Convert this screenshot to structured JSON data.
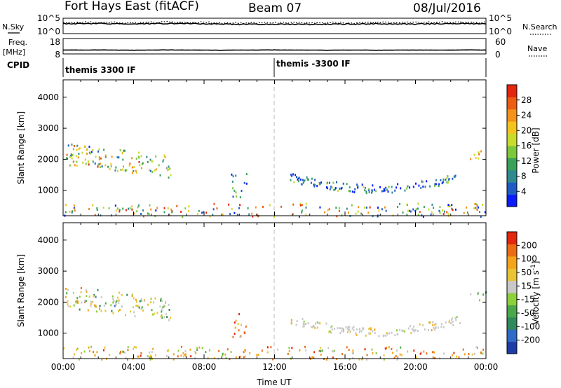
{
  "header": {
    "station": "Fort Hays East (fitACF)",
    "beam": "Beam 07",
    "date": "08/Jul/2016"
  },
  "side_labels": {
    "nsky": "N.Sky",
    "freq": "Freq.",
    "freq_unit": "[MHz]",
    "cpid": "CPID",
    "nsearch": "N.Search",
    "nave": "Nave"
  },
  "cpid_segments": [
    {
      "label": "themis 3300 IF",
      "start_hour": 0
    },
    {
      "label": "themis -3300 IF",
      "start_hour": 12
    }
  ],
  "chart_data": [
    {
      "type": "line",
      "title": "",
      "left_ticks": [
        "10^5",
        "10^0"
      ],
      "right_ticks": [
        "10^5",
        "10^0"
      ],
      "left_label": "N.Sky",
      "right_label": "N.Search",
      "series": [
        {
          "style": "solid",
          "x": [
            0,
            2,
            4,
            6,
            8,
            10,
            12,
            14,
            16,
            18,
            20,
            22,
            24
          ],
          "values": [
            3.2,
            3.3,
            3.1,
            3.3,
            3.2,
            3.0,
            3.1,
            3.0,
            3.1,
            3.2,
            3.1,
            3.3,
            3.2
          ]
        },
        {
          "style": "dotted",
          "x": [
            0,
            2,
            4,
            6,
            8,
            10,
            12,
            14,
            16,
            18,
            20,
            22,
            24
          ],
          "values": [
            3.6,
            3.7,
            3.5,
            3.8,
            3.6,
            3.4,
            3.6,
            3.5,
            3.5,
            3.6,
            3.6,
            3.7,
            3.6
          ]
        }
      ],
      "xlim": [
        0,
        24
      ]
    },
    {
      "type": "line",
      "title": "",
      "left_ticks": [
        "18",
        "8"
      ],
      "right_ticks": [
        "60",
        "0"
      ],
      "left_label": "Freq. [MHz]",
      "right_label": "Nave",
      "series": [
        {
          "style": "solid",
          "x": [
            0,
            1,
            2,
            3,
            4,
            5,
            6,
            7,
            8,
            9,
            10,
            11,
            12,
            13,
            14,
            15,
            16,
            17,
            18,
            19,
            20,
            21,
            22,
            23,
            24
          ],
          "values": [
            10.6,
            10.5,
            10.6,
            10.5,
            10.4,
            10.5,
            10.6,
            10.5,
            10.5,
            10.4,
            10.5,
            10.5,
            10.6,
            10.5,
            10.5,
            10.4,
            10.5,
            10.5,
            10.4,
            10.5,
            10.5,
            10.5,
            10.5,
            10.6,
            10.5
          ]
        }
      ],
      "xlim": [
        0,
        24
      ]
    },
    {
      "type": "scatter",
      "title": "",
      "ylabel": "Slant Range [km]",
      "ylim": [
        180,
        4560
      ],
      "yticks": [
        1000,
        2000,
        3000,
        4000
      ],
      "xlim": [
        0,
        24
      ],
      "colorbar": {
        "label": "Power [dB]",
        "ticks": [
          "4",
          "8",
          "12",
          "16",
          "20",
          "24",
          "28"
        ],
        "colors": [
          "#0a1cff",
          "#1e5cc4",
          "#2e8a8e",
          "#3aa05a",
          "#7cc83a",
          "#c8dc2a",
          "#f4c41e",
          "#f4921a",
          "#ec5c12",
          "#e4260e"
        ]
      },
      "regions": [
        {
          "t0": 0.1,
          "t1": 6.1,
          "r0": 1500,
          "r1": 2650,
          "weights": [
            1,
            2,
            3,
            4,
            5,
            6,
            5,
            4,
            2,
            1
          ]
        },
        {
          "t0": 0.0,
          "t1": 24.0,
          "r0": 180,
          "r1": 600,
          "weights": [
            3,
            3,
            4,
            4,
            5,
            5,
            5,
            4,
            3,
            3
          ]
        },
        {
          "t0": 12.8,
          "t1": 22.5,
          "r0": 900,
          "r1": 1650,
          "weights": [
            6,
            6,
            5,
            3,
            2,
            1,
            0,
            0,
            0,
            0
          ]
        },
        {
          "t0": 9.5,
          "t1": 10.4,
          "r0": 800,
          "r1": 1650,
          "weights": [
            6,
            6,
            5,
            3,
            2,
            1,
            0,
            0,
            0,
            0
          ]
        },
        {
          "t0": 23.0,
          "t1": 24.0,
          "r0": 2000,
          "r1": 2400,
          "weights": [
            0,
            0,
            0,
            0,
            2,
            4,
            6,
            5,
            3,
            1
          ]
        }
      ]
    },
    {
      "type": "scatter",
      "title": "",
      "ylabel": "Slant Range [km]",
      "ylim": [
        180,
        4560
      ],
      "yticks": [
        1000,
        2000,
        3000,
        4000
      ],
      "xlabel": "Time UT",
      "xticks": [
        "00:00",
        "04:00",
        "08:00",
        "12:00",
        "16:00",
        "20:00",
        "00:00"
      ],
      "xlim": [
        0,
        24
      ],
      "colorbar": {
        "label": "Velocity [m s-1]",
        "ticks": [
          "200",
          "100",
          "50",
          "15",
          "-15",
          "-50",
          "-100",
          "-200"
        ],
        "colors": [
          "#1e3ca8",
          "#2e6ac8",
          "#2e8a5a",
          "#4aa84a",
          "#8cd03a",
          "#c8c8c8",
          "#e8c434",
          "#f4a418",
          "#ec6c14",
          "#e4260e"
        ]
      },
      "regions": [
        {
          "t0": 0.1,
          "t1": 6.1,
          "r0": 1500,
          "r1": 2650,
          "weights": [
            0,
            1,
            1,
            2,
            2,
            6,
            5,
            2,
            1,
            0
          ]
        },
        {
          "t0": 0.0,
          "t1": 24.0,
          "r0": 180,
          "r1": 600,
          "weights": [
            0,
            0,
            0,
            1,
            2,
            3,
            4,
            6,
            5,
            2
          ]
        },
        {
          "t0": 12.8,
          "t1": 22.5,
          "r0": 900,
          "r1": 1650,
          "weights": [
            0,
            0,
            0,
            0,
            1,
            8,
            2,
            1,
            0,
            0
          ]
        },
        {
          "t0": 9.5,
          "t1": 10.4,
          "r0": 800,
          "r1": 1650,
          "weights": [
            0,
            0,
            0,
            0,
            0,
            1,
            2,
            3,
            5,
            4
          ]
        },
        {
          "t0": 23.0,
          "t1": 24.0,
          "r0": 2000,
          "r1": 2400,
          "weights": [
            0,
            0,
            1,
            5,
            4,
            2,
            0,
            0,
            0,
            0
          ]
        }
      ]
    }
  ]
}
